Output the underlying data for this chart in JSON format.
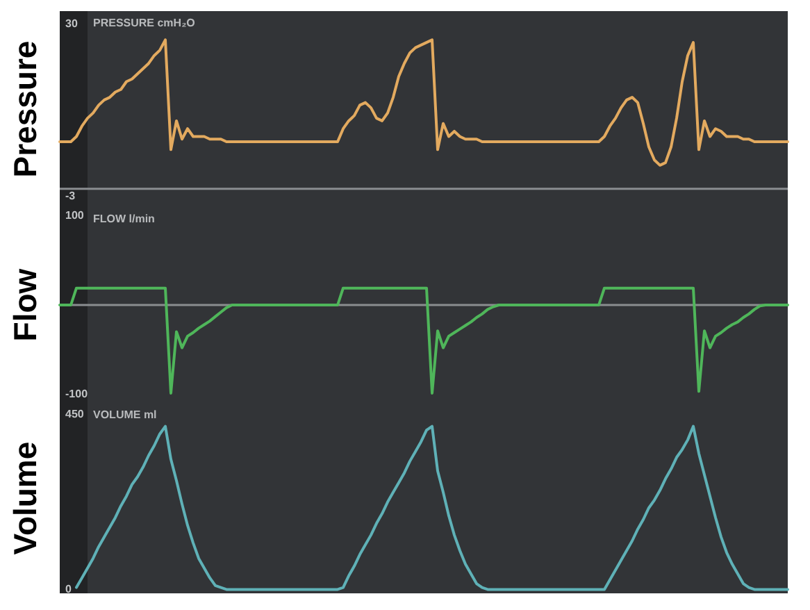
{
  "chart_data": [
    {
      "type": "line",
      "title": "PRESSURE cmH₂O",
      "ylabel": "Pressure",
      "categories": [
        null,
        null,
        null,
        null,
        null,
        null,
        null,
        null,
        null,
        null,
        null,
        null,
        null,
        null,
        null,
        null,
        null,
        null,
        null,
        null,
        null,
        null,
        null,
        null,
        null,
        null,
        null,
        null,
        null,
        null,
        null,
        null,
        null,
        null,
        null,
        null,
        null,
        null,
        null,
        null,
        null,
        null,
        null,
        null,
        null,
        null,
        null,
        null,
        null,
        null,
        null,
        null,
        null,
        null,
        null,
        null,
        null,
        null,
        null,
        null,
        null,
        null,
        null,
        null,
        null,
        null,
        null,
        null,
        null,
        null,
        null,
        null,
        null,
        null,
        null,
        null,
        null,
        null,
        null,
        null,
        null,
        null,
        null,
        null,
        null,
        null,
        null,
        null,
        null,
        null,
        null,
        null,
        null,
        null,
        null,
        null,
        null,
        null,
        null,
        null,
        null,
        null,
        null,
        null,
        null,
        null,
        null,
        null,
        null,
        null,
        null,
        null,
        null,
        null,
        null,
        null,
        null,
        null,
        null,
        null,
        null,
        null,
        null,
        null,
        null,
        null,
        null,
        null,
        null,
        null,
        null,
        null
      ],
      "series": [
        {
          "color": "#e3aa5f",
          "values": [
            7.5,
            7.5,
            7.5,
            8.5,
            10.5,
            12,
            13,
            14.5,
            15.5,
            16,
            17,
            17.5,
            19,
            19.5,
            20.5,
            21.5,
            22.5,
            24,
            25,
            27,
            6,
            11.5,
            8,
            10,
            8.5,
            8.5,
            8.5,
            8,
            8,
            8,
            7.5,
            7.5,
            7.5,
            7.5,
            7.5,
            7.5,
            7.5,
            7.5,
            7.5,
            7.5,
            7.5,
            7.5,
            7.5,
            7.5,
            7.5,
            7.5,
            7.5,
            7.5,
            7.5,
            7.5,
            7.5,
            10,
            11.5,
            12.5,
            14.5,
            15,
            14,
            12,
            11.5,
            13,
            16,
            20,
            22.5,
            24.5,
            25.5,
            26,
            26.5,
            27,
            6,
            11,
            8.5,
            9.5,
            8.5,
            8,
            8,
            8,
            7.5,
            7.5,
            7.5,
            7.5,
            7.5,
            7.5,
            7.5,
            7.5,
            7.5,
            7.5,
            7.5,
            7.5,
            7.5,
            7.5,
            7.5,
            7.5,
            7.5,
            7.5,
            7.5,
            7.5,
            7.5,
            7.5,
            8.5,
            10.5,
            12,
            14,
            15.5,
            16,
            15,
            11,
            6.5,
            4,
            3,
            3.5,
            6.5,
            12,
            19,
            24,
            26.5,
            6,
            11.5,
            8.5,
            10,
            9.5,
            8.5,
            8.5,
            8.5,
            8,
            8,
            7.5,
            7.5,
            7.5,
            7.5,
            7.5,
            7.5,
            7.5
          ]
        }
      ],
      "ylim": [
        -5,
        32.5
      ],
      "yticks": [
        -3,
        30
      ],
      "ref_lines": [
        {
          "axis": "y",
          "value": -1.5,
          "color": "#8a8d90"
        }
      ]
    },
    {
      "type": "line",
      "title": "FLOW l/min",
      "ylabel": "Flow",
      "categories": [
        null,
        null,
        null,
        null,
        null,
        null,
        null,
        null,
        null,
        null,
        null,
        null,
        null,
        null,
        null,
        null,
        null,
        null,
        null,
        null,
        null,
        null,
        null,
        null,
        null,
        null,
        null,
        null,
        null,
        null,
        null,
        null,
        null,
        null,
        null,
        null,
        null,
        null,
        null,
        null,
        null,
        null,
        null,
        null,
        null,
        null,
        null,
        null,
        null,
        null,
        null,
        null,
        null,
        null,
        null,
        null,
        null,
        null,
        null,
        null,
        null,
        null,
        null,
        null,
        null,
        null,
        null,
        null,
        null,
        null,
        null,
        null,
        null,
        null,
        null,
        null,
        null,
        null,
        null,
        null,
        null,
        null,
        null,
        null,
        null,
        null,
        null,
        null,
        null,
        null,
        null,
        null,
        null,
        null,
        null,
        null,
        null,
        null,
        null,
        null,
        null,
        null,
        null,
        null,
        null,
        null,
        null,
        null,
        null,
        null,
        null,
        null,
        null,
        null,
        null,
        null,
        null,
        null,
        null,
        null,
        null,
        null,
        null,
        null,
        null,
        null,
        null,
        null,
        null,
        null,
        null,
        null
      ],
      "series": [
        {
          "color": "#4fb65a",
          "values": [
            0,
            0,
            0,
            19,
            19,
            19,
            19,
            19,
            19,
            19,
            19,
            19,
            19,
            19,
            19,
            19,
            19,
            19,
            19,
            19,
            -99,
            -30,
            -48,
            -35,
            -31,
            -26,
            -22,
            -18,
            -13,
            -8,
            -3,
            0,
            0,
            0,
            0,
            0,
            0,
            0,
            0,
            0,
            0,
            0,
            0,
            0,
            0,
            0,
            0,
            0,
            0,
            0,
            0,
            19,
            19,
            19,
            19,
            19,
            19,
            19,
            19,
            19,
            19,
            19,
            19,
            19,
            19,
            19,
            19,
            -99,
            -29,
            -48,
            -35,
            -31,
            -27,
            -23,
            -19,
            -14,
            -10,
            -5,
            -2,
            0,
            0,
            0,
            0,
            0,
            0,
            0,
            0,
            0,
            0,
            0,
            0,
            0,
            0,
            0,
            0,
            0,
            0,
            0,
            19,
            19,
            19,
            19,
            19,
            19,
            19,
            19,
            19,
            19,
            19,
            19,
            19,
            19,
            19,
            19,
            19,
            -97,
            -29,
            -48,
            -35,
            -31,
            -26,
            -22,
            -19,
            -14,
            -10,
            -5,
            -1,
            0,
            0,
            0,
            0,
            0
          ]
        }
      ],
      "ylim": [
        -110,
        110
      ],
      "yticks": [
        -100,
        100
      ],
      "ref_lines": [
        {
          "axis": "y",
          "value": 0,
          "color": "#8a8d90"
        }
      ]
    },
    {
      "type": "line",
      "title": "VOLUME ml",
      "ylabel": "Volume",
      "categories": [
        null,
        null,
        null,
        null,
        null,
        null,
        null,
        null,
        null,
        null,
        null,
        null,
        null,
        null,
        null,
        null,
        null,
        null,
        null,
        null,
        null,
        null,
        null,
        null,
        null,
        null,
        null,
        null,
        null,
        null,
        null,
        null,
        null,
        null,
        null,
        null,
        null,
        null,
        null,
        null,
        null,
        null,
        null,
        null,
        null,
        null,
        null,
        null,
        null,
        null,
        null,
        null,
        null,
        null,
        null,
        null,
        null,
        null,
        null,
        null,
        null,
        null,
        null,
        null,
        null,
        null,
        null,
        null,
        null,
        null,
        null,
        null,
        null,
        null,
        null,
        null,
        null,
        null,
        null,
        null,
        null,
        null,
        null,
        null,
        null,
        null,
        null,
        null,
        null,
        null,
        null,
        null,
        null,
        null,
        null,
        null,
        null,
        null,
        null,
        null,
        null,
        null,
        null,
        null,
        null,
        null,
        null,
        null,
        null,
        null,
        null,
        null,
        null,
        null,
        null,
        null,
        null,
        null,
        null,
        null,
        null,
        null,
        null,
        null,
        null,
        null,
        null,
        null,
        null,
        null,
        null,
        null
      ],
      "series": [
        {
          "color": "#5fb1b7",
          "values": [
            null,
            null,
            null,
            5,
            30,
            55,
            80,
            110,
            135,
            160,
            185,
            215,
            240,
            270,
            290,
            315,
            345,
            370,
            400,
            420,
            335,
            280,
            220,
            165,
            120,
            80,
            55,
            30,
            10,
            5,
            0,
            0,
            0,
            0,
            0,
            0,
            0,
            0,
            0,
            0,
            0,
            0,
            0,
            0,
            0,
            0,
            0,
            0,
            0,
            0,
            0,
            5,
            35,
            60,
            90,
            115,
            140,
            170,
            195,
            225,
            250,
            275,
            300,
            330,
            355,
            380,
            410,
            420,
            305,
            250,
            190,
            140,
            100,
            65,
            40,
            15,
            5,
            0,
            0,
            0,
            0,
            0,
            0,
            0,
            0,
            0,
            0,
            0,
            0,
            0,
            0,
            0,
            0,
            0,
            0,
            0,
            0,
            0,
            0,
            25,
            50,
            75,
            100,
            125,
            155,
            180,
            210,
            230,
            255,
            285,
            310,
            340,
            360,
            385,
            420,
            350,
            295,
            240,
            185,
            135,
            95,
            65,
            40,
            15,
            5,
            0,
            0,
            0,
            0,
            0,
            0,
            0
          ]
        }
      ],
      "ylim": [
        -10,
        480
      ],
      "yticks": [
        0,
        450
      ]
    }
  ]
}
